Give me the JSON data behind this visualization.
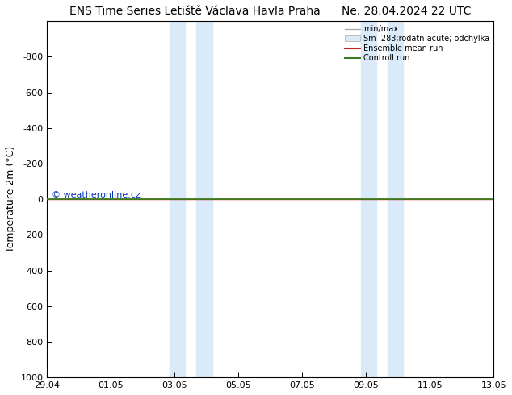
{
  "title_left": "ENS Time Series Letiště Václava Havla Praha",
  "title_right": "Ne. 28.04.2024 22 UTC",
  "ylabel": "Temperature 2m (°C)",
  "ylim": [
    -1000,
    1000
  ],
  "yticks": [
    -800,
    -600,
    -400,
    -200,
    0,
    200,
    400,
    600,
    800,
    1000
  ],
  "xlim": [
    0,
    14
  ],
  "xtick_positions": [
    0,
    2,
    4,
    6,
    8,
    10,
    12,
    14
  ],
  "xtick_labels": [
    "29.04",
    "01.05",
    "03.05",
    "05.05",
    "07.05",
    "09.05",
    "11.05",
    "13.05"
  ],
  "shaded_bands": [
    {
      "xmin": 3.83,
      "xmax": 4.33
    },
    {
      "xmin": 4.67,
      "xmax": 5.17
    },
    {
      "xmin": 9.83,
      "xmax": 10.33
    },
    {
      "xmin": 10.67,
      "xmax": 11.17
    }
  ],
  "shade_color": "#daeaf8",
  "green_line_color": "#3a7d1e",
  "red_line_color": "#cc2222",
  "watermark": "© weatheronline.cz",
  "watermark_color": "#0033bb",
  "background_color": "#ffffff",
  "legend_labels": [
    "min/max",
    "Sm  283;rodatn acute; odchylka",
    "Ensemble mean run",
    "Controll run"
  ],
  "title_fontsize": 10,
  "axis_fontsize": 9,
  "tick_fontsize": 8
}
